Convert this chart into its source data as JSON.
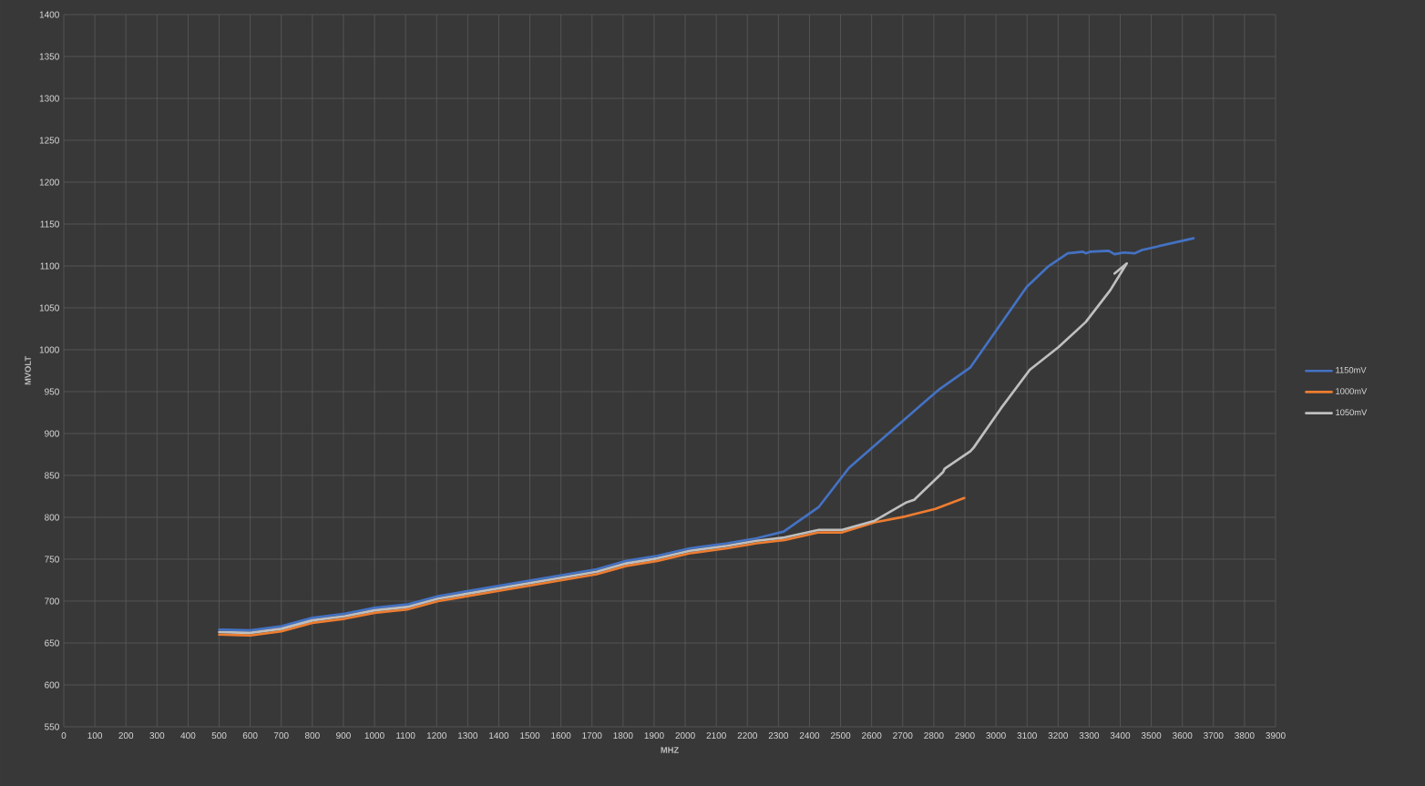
{
  "chart_data": {
    "type": "line",
    "xlabel": "MHZ",
    "ylabel": "MVOLT",
    "xlim": [
      0,
      3900
    ],
    "ylim": [
      550,
      1400
    ],
    "xticks": [
      0,
      100,
      200,
      300,
      400,
      500,
      600,
      700,
      800,
      900,
      1000,
      1100,
      1200,
      1300,
      1400,
      1500,
      1600,
      1700,
      1800,
      1900,
      2000,
      2100,
      2200,
      2300,
      2400,
      2500,
      2600,
      2700,
      2800,
      2900,
      3000,
      3100,
      3200,
      3300,
      3400,
      3500,
      3600,
      3700,
      3800,
      3900
    ],
    "yticks": [
      550,
      600,
      650,
      700,
      750,
      800,
      850,
      900,
      950,
      1000,
      1050,
      1100,
      1150,
      1200,
      1250,
      1300,
      1350,
      1400
    ],
    "grid": true,
    "legend": "right",
    "series": [
      {
        "name": "1150mV",
        "color": "#4472c4",
        "x": [
          500,
          600,
          700,
          800,
          905,
          1000,
          1105,
          1205,
          1715,
          1810,
          1910,
          2015,
          2135,
          2230,
          2317,
          2429,
          2527,
          2815,
          2918,
          3099,
          3167,
          3231,
          3280,
          3289,
          3304,
          3363,
          3382,
          3411,
          3446,
          3470,
          3636
        ],
        "values": [
          666,
          665,
          670,
          680,
          685,
          692,
          696,
          706,
          738,
          748,
          754,
          763,
          769,
          775,
          783,
          812,
          859,
          952,
          979,
          1075,
          1099,
          1115,
          1117,
          1115,
          1117,
          1118,
          1114,
          1116,
          1115,
          1119,
          1133
        ]
      },
      {
        "name": "1000mV",
        "color": "#ed7d31",
        "x": [
          500,
          600,
          700,
          800,
          905,
          1000,
          1105,
          1205,
          1715,
          1810,
          1910,
          2015,
          2135,
          2230,
          2320,
          2430,
          2505,
          2610,
          2708,
          2805,
          2898
        ],
        "values": [
          660,
          659,
          664,
          674,
          679,
          686,
          690,
          700,
          732,
          742,
          748,
          757,
          763,
          769,
          773,
          782,
          782,
          794,
          801,
          810,
          823
        ]
      },
      {
        "name": "1050mV",
        "color": "#bfbfbf",
        "x": [
          500,
          600,
          700,
          800,
          905,
          1000,
          1105,
          1205,
          1715,
          1810,
          1910,
          2015,
          2135,
          2230,
          2320,
          2430,
          2505,
          2610,
          2713,
          2737,
          2830,
          2835,
          2918,
          2928,
          3016,
          3109,
          3201,
          3289,
          3368,
          3421,
          3382
        ],
        "values": [
          663,
          662,
          667,
          677,
          682,
          689,
          693,
          703,
          735,
          745,
          751,
          760,
          766,
          772,
          776,
          785,
          785,
          796,
          818,
          821,
          854,
          858,
          879,
          883,
          930,
          976,
          1003,
          1033,
          1071,
          1103,
          1091
        ]
      }
    ]
  }
}
